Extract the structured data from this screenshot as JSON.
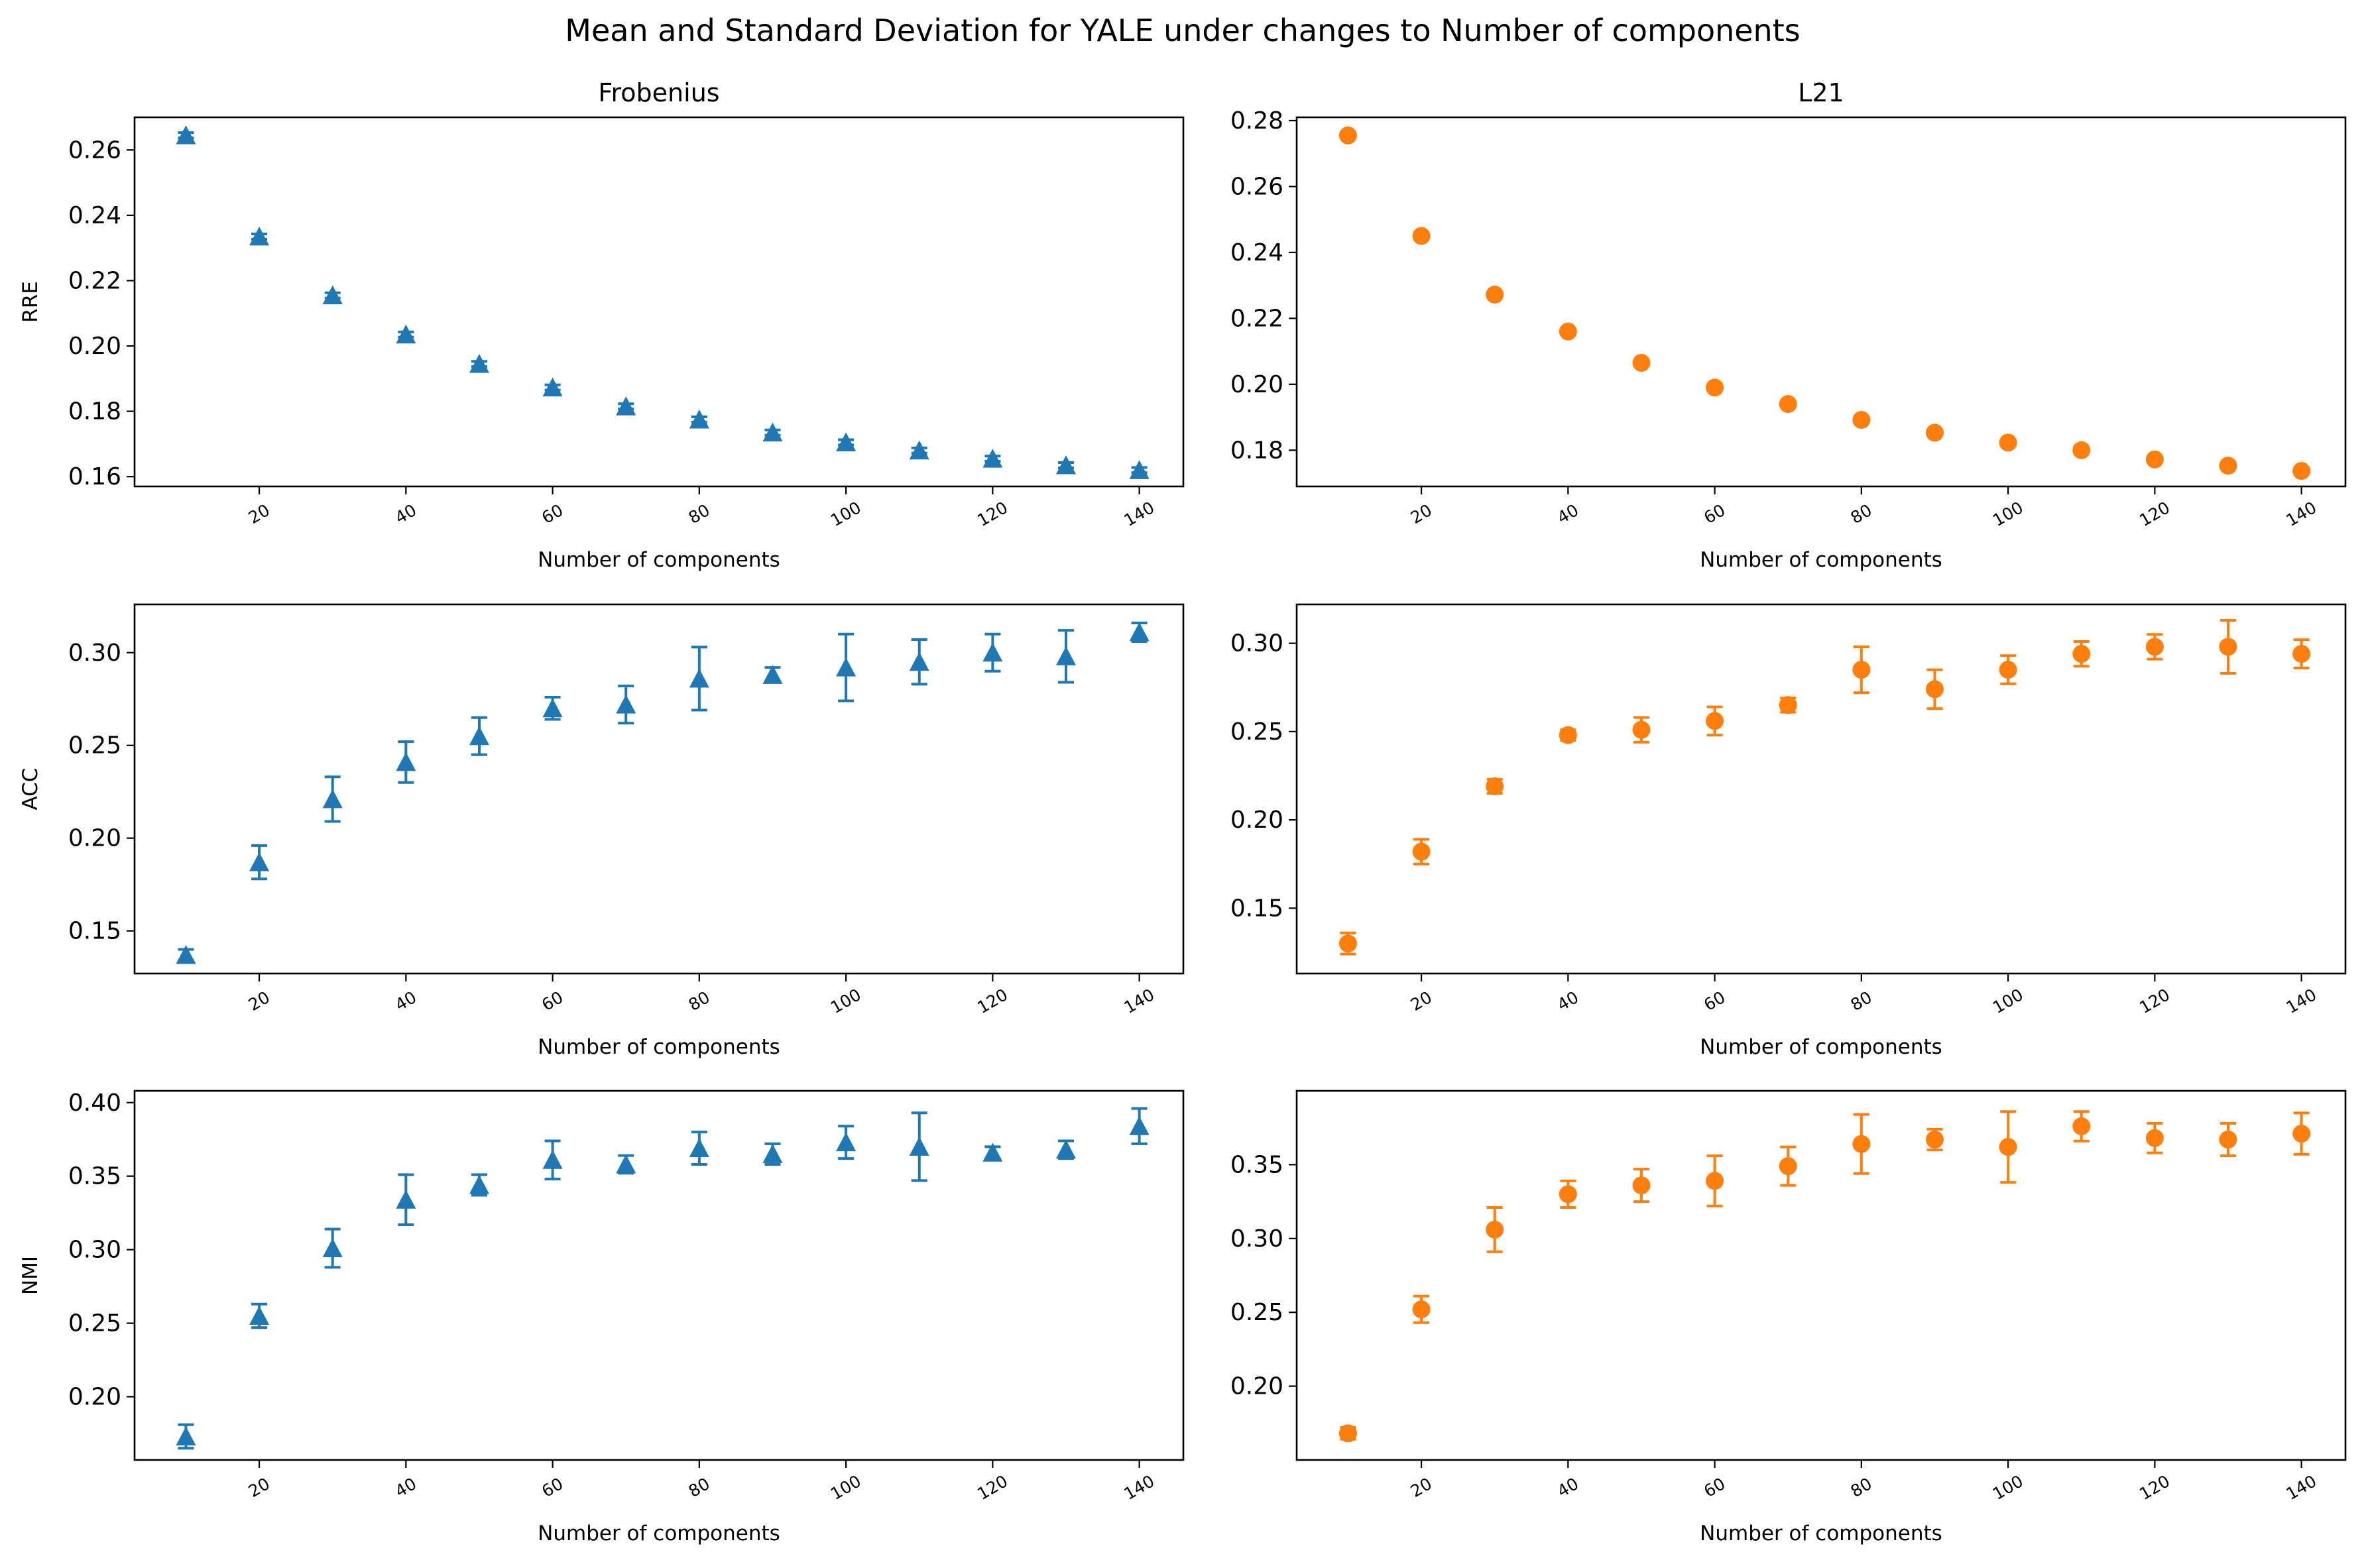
{
  "figure_title": "Mean and Standard Deviation for YALE under changes to Number of components",
  "colors": {
    "frobenius": "#1f77b4",
    "l21": "#ff7f0e"
  },
  "chart_data": [
    {
      "id": "frob-rre",
      "type": "scatter",
      "marker": "triangle",
      "color": "#1f77b4",
      "title": "Frobenius",
      "xlabel": "Number of components",
      "ylabel": "RRE",
      "xlim": [
        3,
        146
      ],
      "ylim": [
        0.157,
        0.27
      ],
      "xticks": [
        20,
        40,
        60,
        80,
        100,
        120,
        140
      ],
      "yticks": [
        0.16,
        0.18,
        0.2,
        0.22,
        0.24,
        0.26
      ],
      "yticklabels": [
        "0.16",
        "0.18",
        "0.20",
        "0.22",
        "0.24",
        "0.26"
      ],
      "x": [
        10,
        20,
        30,
        40,
        50,
        60,
        70,
        80,
        90,
        100,
        110,
        120,
        130,
        140
      ],
      "y": [
        0.2645,
        0.2335,
        0.2155,
        0.2035,
        0.1945,
        0.1873,
        0.1815,
        0.1775,
        0.1735,
        0.1705,
        0.168,
        0.1655,
        0.1635,
        0.162
      ],
      "err": [
        0.0008,
        0.0008,
        0.0008,
        0.0008,
        0.0008,
        0.0008,
        0.0008,
        0.0008,
        0.0008,
        0.0008,
        0.0008,
        0.0008,
        0.0008,
        0.0008
      ]
    },
    {
      "id": "l21-rre",
      "type": "scatter",
      "marker": "circle",
      "color": "#ff7f0e",
      "title": "L21",
      "xlabel": "Number of components",
      "ylabel": "",
      "xlim": [
        3,
        146
      ],
      "ylim": [
        0.169,
        0.281
      ],
      "xticks": [
        20,
        40,
        60,
        80,
        100,
        120,
        140
      ],
      "yticks": [
        0.18,
        0.2,
        0.22,
        0.24,
        0.26,
        0.28
      ],
      "yticklabels": [
        "0.18",
        "0.20",
        "0.22",
        "0.24",
        "0.26",
        "0.28"
      ],
      "x": [
        10,
        20,
        30,
        40,
        50,
        60,
        70,
        80,
        90,
        100,
        110,
        120,
        130,
        140
      ],
      "y": [
        0.2755,
        0.245,
        0.2272,
        0.216,
        0.2065,
        0.199,
        0.194,
        0.1892,
        0.1853,
        0.1823,
        0.18,
        0.1772,
        0.1753,
        0.1737
      ],
      "err": [
        0.0005,
        0.0005,
        0.0005,
        0.0005,
        0.0005,
        0.0005,
        0.0005,
        0.0005,
        0.0005,
        0.0005,
        0.0005,
        0.0005,
        0.0005,
        0.0005
      ]
    },
    {
      "id": "frob-acc",
      "type": "scatter",
      "marker": "triangle",
      "color": "#1f77b4",
      "title": "",
      "xlabel": "Number of components",
      "ylabel": "ACC",
      "xlim": [
        3,
        146
      ],
      "ylim": [
        0.127,
        0.326
      ],
      "xticks": [
        20,
        40,
        60,
        80,
        100,
        120,
        140
      ],
      "yticks": [
        0.15,
        0.2,
        0.25,
        0.3
      ],
      "yticklabels": [
        "0.15",
        "0.20",
        "0.25",
        "0.30"
      ],
      "x": [
        10,
        20,
        30,
        40,
        50,
        60,
        70,
        80,
        90,
        100,
        110,
        120,
        130,
        140
      ],
      "y": [
        0.137,
        0.187,
        0.221,
        0.241,
        0.255,
        0.27,
        0.272,
        0.286,
        0.288,
        0.292,
        0.295,
        0.3,
        0.298,
        0.311
      ],
      "err": [
        0.003,
        0.009,
        0.012,
        0.011,
        0.01,
        0.006,
        0.01,
        0.017,
        0.004,
        0.018,
        0.012,
        0.01,
        0.014,
        0.005
      ]
    },
    {
      "id": "l21-acc",
      "type": "scatter",
      "marker": "circle",
      "color": "#ff7f0e",
      "title": "",
      "xlabel": "Number of components",
      "ylabel": "",
      "xlim": [
        3,
        146
      ],
      "ylim": [
        0.113,
        0.322
      ],
      "xticks": [
        20,
        40,
        60,
        80,
        100,
        120,
        140
      ],
      "yticks": [
        0.15,
        0.2,
        0.25,
        0.3
      ],
      "yticklabels": [
        "0.15",
        "0.20",
        "0.25",
        "0.30"
      ],
      "x": [
        10,
        20,
        30,
        40,
        50,
        60,
        70,
        80,
        90,
        100,
        110,
        120,
        130,
        140
      ],
      "y": [
        0.13,
        0.182,
        0.219,
        0.248,
        0.251,
        0.256,
        0.265,
        0.285,
        0.274,
        0.285,
        0.294,
        0.298,
        0.298,
        0.294
      ],
      "err": [
        0.006,
        0.007,
        0.004,
        0.003,
        0.007,
        0.008,
        0.004,
        0.013,
        0.011,
        0.008,
        0.007,
        0.007,
        0.015,
        0.008
      ]
    },
    {
      "id": "frob-nmi",
      "type": "scatter",
      "marker": "triangle",
      "color": "#1f77b4",
      "title": "",
      "xlabel": "Number of components",
      "ylabel": "NMI",
      "xlim": [
        3,
        146
      ],
      "ylim": [
        0.157,
        0.408
      ],
      "xticks": [
        20,
        40,
        60,
        80,
        100,
        120,
        140
      ],
      "yticks": [
        0.2,
        0.25,
        0.3,
        0.35,
        0.4
      ],
      "yticklabels": [
        "0.20",
        "0.25",
        "0.30",
        "0.35",
        "0.40"
      ],
      "x": [
        10,
        20,
        30,
        40,
        50,
        60,
        70,
        80,
        90,
        100,
        110,
        120,
        130,
        140
      ],
      "y": [
        0.173,
        0.255,
        0.301,
        0.334,
        0.344,
        0.361,
        0.358,
        0.369,
        0.365,
        0.373,
        0.37,
        0.366,
        0.368,
        0.384
      ],
      "err": [
        0.008,
        0.008,
        0.013,
        0.017,
        0.007,
        0.013,
        0.006,
        0.011,
        0.007,
        0.011,
        0.023,
        0.004,
        0.006,
        0.012
      ]
    },
    {
      "id": "l21-nmi",
      "type": "scatter",
      "marker": "circle",
      "color": "#ff7f0e",
      "title": "",
      "xlabel": "Number of components",
      "ylabel": "",
      "xlim": [
        3,
        146
      ],
      "ylim": [
        0.15,
        0.4
      ],
      "xticks": [
        20,
        40,
        60,
        80,
        100,
        120,
        140
      ],
      "yticks": [
        0.2,
        0.25,
        0.3,
        0.35
      ],
      "yticklabels": [
        "0.20",
        "0.25",
        "0.30",
        "0.35"
      ],
      "x": [
        10,
        20,
        30,
        40,
        50,
        60,
        70,
        80,
        90,
        100,
        110,
        120,
        130,
        140
      ],
      "y": [
        0.168,
        0.252,
        0.306,
        0.33,
        0.336,
        0.339,
        0.349,
        0.364,
        0.367,
        0.362,
        0.376,
        0.368,
        0.367,
        0.371
      ],
      "err": [
        0.004,
        0.009,
        0.015,
        0.009,
        0.011,
        0.017,
        0.013,
        0.02,
        0.007,
        0.024,
        0.01,
        0.01,
        0.011,
        0.014
      ]
    }
  ]
}
